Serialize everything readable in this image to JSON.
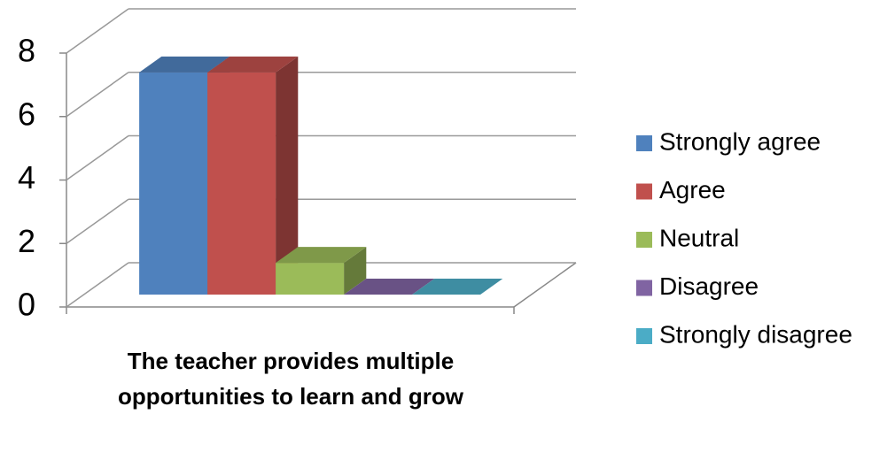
{
  "chart_data": {
    "type": "bar3d",
    "categories": [
      "The teacher provides multiple opportunities to learn and grow"
    ],
    "series": [
      {
        "name": "Strongly agree",
        "color": "#4f81bd",
        "values": [
          7
        ]
      },
      {
        "name": "Agree",
        "color": "#c0504d",
        "values": [
          7
        ]
      },
      {
        "name": "Neutral",
        "color": "#9bbb59",
        "values": [
          1
        ]
      },
      {
        "name": "Disagree",
        "color": "#8064a2",
        "values": [
          0
        ]
      },
      {
        "name": "Strongly disagree",
        "color": "#4bacc6",
        "values": [
          0
        ]
      }
    ],
    "ylim": [
      0,
      8
    ],
    "yticks": [
      0,
      2,
      4,
      6,
      8
    ],
    "grid": true,
    "legend": "right"
  }
}
